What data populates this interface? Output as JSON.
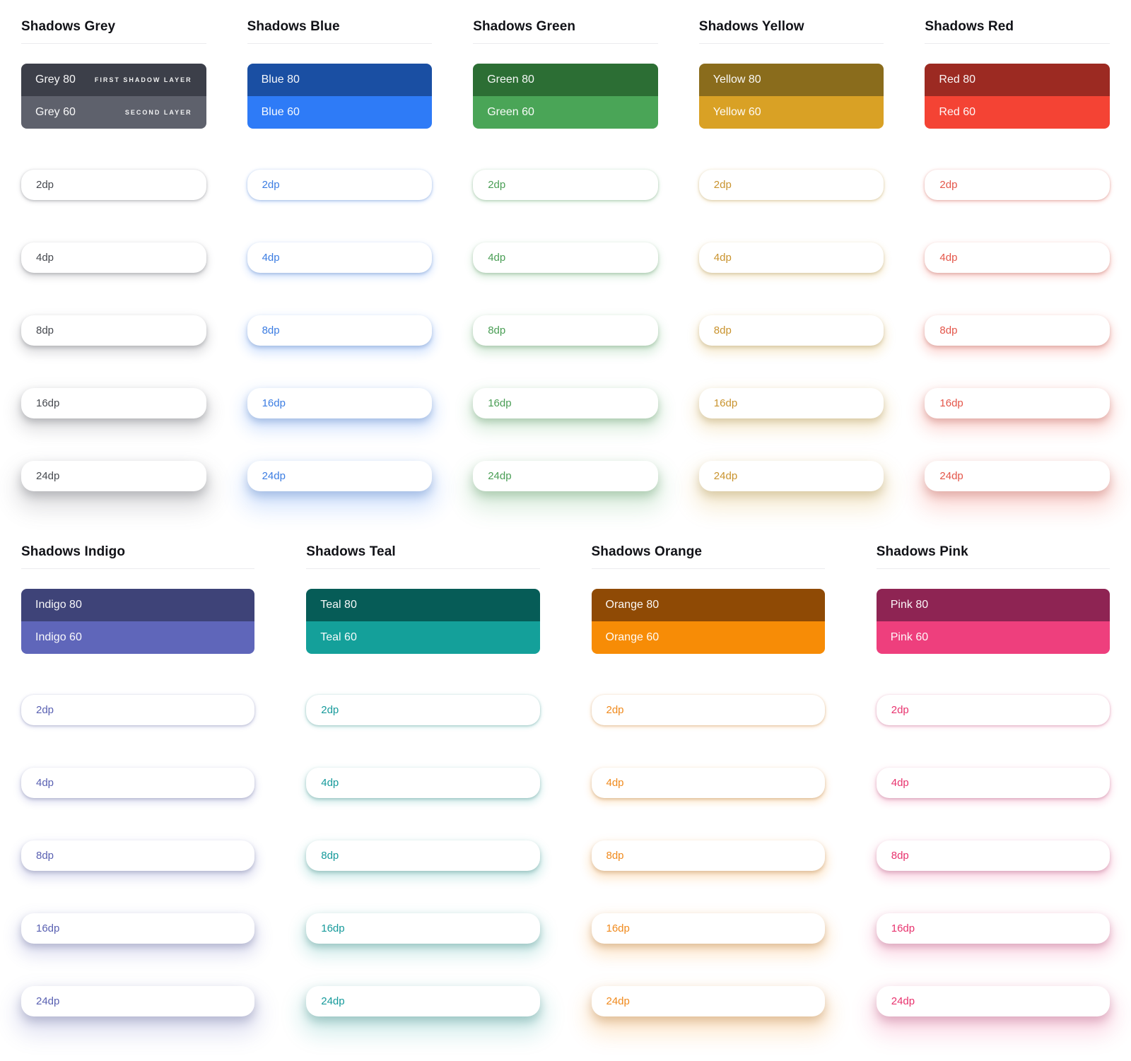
{
  "page": {
    "background": "#ffffff"
  },
  "groups": [
    {
      "title": "Shadows Grey",
      "row": 1,
      "label_color": "#46494f",
      "swatches": [
        {
          "label": "Grey 80",
          "color": "#3c3f49",
          "annotation": "FIRST SHADOW LAYER"
        },
        {
          "label": "Grey 60",
          "color": "#5e616c",
          "annotation": "SECOND LAYER"
        }
      ],
      "elevations": [
        {
          "label": "2dp"
        },
        {
          "label": "4dp"
        },
        {
          "label": "8dp"
        },
        {
          "label": "16dp"
        },
        {
          "label": "24dp"
        }
      ]
    },
    {
      "title": "Shadows Blue",
      "row": 1,
      "label_color": "#3c7de2",
      "swatches": [
        {
          "label": "Blue 80",
          "color": "#1a4fa3"
        },
        {
          "label": "Blue 60",
          "color": "#2e7bf7"
        }
      ],
      "elevations": [
        {
          "label": "2dp"
        },
        {
          "label": "4dp"
        },
        {
          "label": "8dp"
        },
        {
          "label": "16dp"
        },
        {
          "label": "24dp"
        }
      ]
    },
    {
      "title": "Shadows Green",
      "row": 1,
      "label_color": "#4a9e55",
      "swatches": [
        {
          "label": "Green 80",
          "color": "#2c6e34"
        },
        {
          "label": "Green 60",
          "color": "#4aa557"
        }
      ],
      "elevations": [
        {
          "label": "2dp"
        },
        {
          "label": "4dp"
        },
        {
          "label": "8dp"
        },
        {
          "label": "16dp"
        },
        {
          "label": "24dp"
        }
      ]
    },
    {
      "title": "Shadows Yellow",
      "row": 1,
      "label_color": "#c9932e",
      "swatches": [
        {
          "label": "Yellow 80",
          "color": "#8a6c1c"
        },
        {
          "label": "Yellow 60",
          "color": "#d9a125"
        }
      ],
      "elevations": [
        {
          "label": "2dp"
        },
        {
          "label": "4dp"
        },
        {
          "label": "8dp"
        },
        {
          "label": "16dp"
        },
        {
          "label": "24dp"
        }
      ]
    },
    {
      "title": "Shadows Red",
      "row": 1,
      "label_color": "#e4564a",
      "swatches": [
        {
          "label": "Red 80",
          "color": "#9c2a22"
        },
        {
          "label": "Red 60",
          "color": "#f44334"
        }
      ],
      "elevations": [
        {
          "label": "2dp"
        },
        {
          "label": "4dp"
        },
        {
          "label": "8dp"
        },
        {
          "label": "16dp"
        },
        {
          "label": "24dp"
        }
      ]
    },
    {
      "title": "Shadows Indigo",
      "row": 2,
      "label_color": "#5a61b2",
      "swatches": [
        {
          "label": "Indigo 80",
          "color": "#3e4378"
        },
        {
          "label": "Indigo 60",
          "color": "#5f66ba"
        }
      ],
      "elevations": [
        {
          "label": "2dp"
        },
        {
          "label": "4dp"
        },
        {
          "label": "8dp"
        },
        {
          "label": "16dp"
        },
        {
          "label": "24dp"
        }
      ]
    },
    {
      "title": "Shadows Teal",
      "row": 2,
      "label_color": "#169a9b",
      "swatches": [
        {
          "label": "Teal 80",
          "color": "#065c57"
        },
        {
          "label": "Teal 60",
          "color": "#14a09a"
        }
      ],
      "elevations": [
        {
          "label": "2dp"
        },
        {
          "label": "4dp"
        },
        {
          "label": "8dp"
        },
        {
          "label": "16dp"
        },
        {
          "label": "24dp"
        }
      ]
    },
    {
      "title": "Shadows Orange",
      "row": 2,
      "label_color": "#f08a1d",
      "swatches": [
        {
          "label": "Orange 80",
          "color": "#8f4a05"
        },
        {
          "label": "Orange 60",
          "color": "#f78c06"
        }
      ],
      "elevations": [
        {
          "label": "2dp"
        },
        {
          "label": "4dp"
        },
        {
          "label": "8dp"
        },
        {
          "label": "16dp"
        },
        {
          "label": "24dp"
        }
      ]
    },
    {
      "title": "Shadows Pink",
      "row": 2,
      "label_color": "#e8336e",
      "swatches": [
        {
          "label": "Pink 80",
          "color": "#8e2453"
        },
        {
          "label": "Pink 60",
          "color": "#ee3f7d"
        }
      ],
      "elevations": [
        {
          "label": "2dp"
        },
        {
          "label": "4dp"
        },
        {
          "label": "8dp"
        },
        {
          "label": "16dp"
        },
        {
          "label": "24dp"
        }
      ]
    }
  ]
}
